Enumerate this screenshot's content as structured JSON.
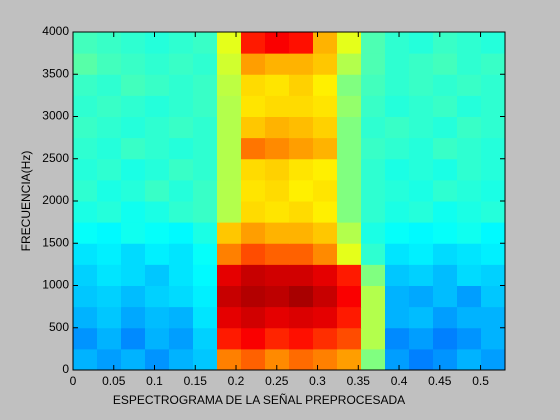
{
  "chart_data": {
    "type": "heatmap",
    "xlabel": "ESPECTROGRAMA DE LA SEÑAL PREPROCESADA",
    "ylabel": "FRECUENCIA(Hz)",
    "xlim": [
      0,
      0.53
    ],
    "xticks": [
      0,
      0.05,
      0.1,
      0.15,
      0.2,
      0.25,
      0.3,
      0.35,
      0.4,
      0.45,
      0.5
    ],
    "ylim": [
      0,
      4000
    ],
    "yticks": [
      0,
      500,
      1000,
      1500,
      2000,
      2500,
      3000,
      3500,
      4000
    ],
    "colormap": "jet",
    "z": [
      [
        0.3,
        0.28,
        0.3,
        0.27,
        0.3,
        0.32,
        0.75,
        0.78,
        0.74,
        0.77,
        0.75,
        0.72,
        0.5,
        0.28,
        0.25,
        0.27,
        0.3,
        0.28
      ],
      [
        0.27,
        0.3,
        0.26,
        0.3,
        0.28,
        0.33,
        0.85,
        0.88,
        0.84,
        0.86,
        0.83,
        0.8,
        0.55,
        0.26,
        0.28,
        0.25,
        0.27,
        0.3
      ],
      [
        0.3,
        0.32,
        0.29,
        0.31,
        0.3,
        0.35,
        0.9,
        0.92,
        0.9,
        0.91,
        0.9,
        0.85,
        0.55,
        0.3,
        0.31,
        0.28,
        0.3,
        0.3
      ],
      [
        0.32,
        0.33,
        0.31,
        0.33,
        0.34,
        0.36,
        0.93,
        0.95,
        0.94,
        0.96,
        0.93,
        0.88,
        0.55,
        0.3,
        0.29,
        0.31,
        0.28,
        0.32
      ],
      [
        0.33,
        0.35,
        0.34,
        0.32,
        0.35,
        0.37,
        0.9,
        0.93,
        0.92,
        0.92,
        0.9,
        0.85,
        0.5,
        0.32,
        0.33,
        0.31,
        0.34,
        0.33
      ],
      [
        0.35,
        0.36,
        0.34,
        0.36,
        0.35,
        0.38,
        0.75,
        0.8,
        0.78,
        0.78,
        0.74,
        0.6,
        0.42,
        0.35,
        0.36,
        0.34,
        0.35,
        0.36
      ],
      [
        0.38,
        0.37,
        0.39,
        0.38,
        0.37,
        0.4,
        0.68,
        0.72,
        0.7,
        0.7,
        0.68,
        0.55,
        0.4,
        0.38,
        0.37,
        0.38,
        0.39,
        0.37
      ],
      [
        0.4,
        0.41,
        0.39,
        0.4,
        0.42,
        0.43,
        0.55,
        0.66,
        0.65,
        0.66,
        0.64,
        0.5,
        0.42,
        0.4,
        0.41,
        0.39,
        0.4,
        0.41
      ],
      [
        0.42,
        0.4,
        0.41,
        0.43,
        0.41,
        0.43,
        0.55,
        0.65,
        0.66,
        0.64,
        0.65,
        0.5,
        0.42,
        0.41,
        0.4,
        0.42,
        0.41,
        0.4
      ],
      [
        0.41,
        0.42,
        0.4,
        0.41,
        0.43,
        0.42,
        0.55,
        0.66,
        0.67,
        0.65,
        0.64,
        0.5,
        0.42,
        0.4,
        0.41,
        0.4,
        0.42,
        0.41
      ],
      [
        0.42,
        0.41,
        0.43,
        0.42,
        0.41,
        0.42,
        0.55,
        0.76,
        0.74,
        0.72,
        0.7,
        0.5,
        0.43,
        0.42,
        0.41,
        0.43,
        0.42,
        0.41
      ],
      [
        0.43,
        0.42,
        0.41,
        0.42,
        0.43,
        0.42,
        0.55,
        0.68,
        0.7,
        0.69,
        0.67,
        0.5,
        0.42,
        0.43,
        0.42,
        0.41,
        0.43,
        0.42
      ],
      [
        0.42,
        0.43,
        0.42,
        0.41,
        0.42,
        0.43,
        0.55,
        0.65,
        0.66,
        0.66,
        0.65,
        0.52,
        0.43,
        0.41,
        0.42,
        0.43,
        0.41,
        0.42
      ],
      [
        0.43,
        0.42,
        0.44,
        0.43,
        0.42,
        0.43,
        0.56,
        0.66,
        0.65,
        0.67,
        0.64,
        0.5,
        0.44,
        0.42,
        0.43,
        0.42,
        0.43,
        0.42
      ],
      [
        0.46,
        0.44,
        0.43,
        0.42,
        0.43,
        0.42,
        0.58,
        0.72,
        0.7,
        0.7,
        0.68,
        0.55,
        0.45,
        0.42,
        0.43,
        0.44,
        0.42,
        0.43
      ],
      [
        0.44,
        0.43,
        0.42,
        0.41,
        0.42,
        0.43,
        0.6,
        0.85,
        0.88,
        0.86,
        0.7,
        0.6,
        0.45,
        0.42,
        0.41,
        0.43,
        0.42,
        0.41
      ]
    ]
  }
}
